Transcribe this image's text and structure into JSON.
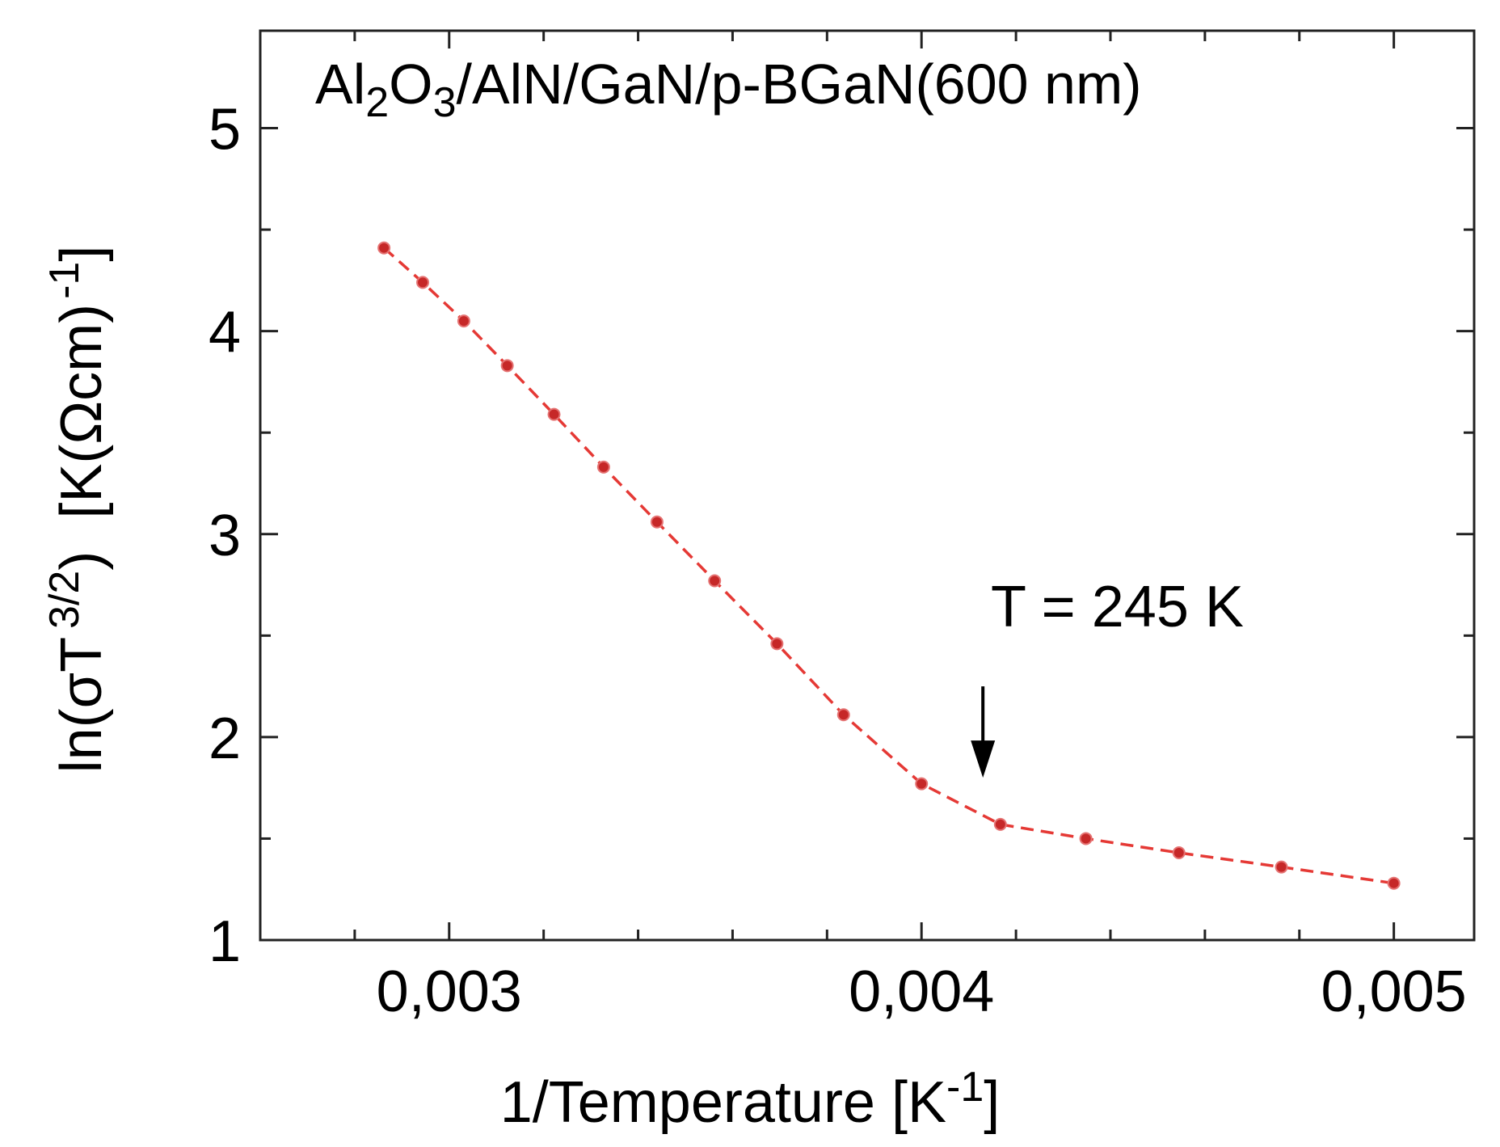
{
  "chart_data": {
    "type": "line",
    "title": "Al2O3/AlN/GaN/p-BGaN(600 nm)",
    "title_parts": [
      "Al",
      "2",
      "O",
      "3",
      "/AlN/GaN/p-BGaN(600 nm)"
    ],
    "xlabel": "1/Temperature [K-1]",
    "xlabel_parts": [
      "1/Temperature [K",
      "-1",
      "]"
    ],
    "ylabel": "ln(σT 3/2)  [K(Ωcm) -1]",
    "ylabel_parts": [
      "ln(σT",
      "3/2",
      ")  [K(Ωcm)",
      "-1",
      "]"
    ],
    "xlim": [
      0.0026,
      0.00517
    ],
    "ylim": [
      1.0,
      5.48
    ],
    "x_ticks": [
      0.003,
      0.004,
      0.005
    ],
    "x_tick_labels": [
      "0,003",
      "0,004",
      "0,005"
    ],
    "x_minor_ticks": [
      0.0028,
      0.0032,
      0.0034,
      0.0036,
      0.0038,
      0.0042,
      0.0044,
      0.0046,
      0.0048
    ],
    "y_ticks": [
      1,
      2,
      3,
      4,
      5
    ],
    "y_tick_labels": [
      "1",
      "2",
      "3",
      "4",
      "5"
    ],
    "y_minor_ticks": [
      1.5,
      2.5,
      3.5,
      4.5
    ],
    "grid": false,
    "series": [
      {
        "color": "#c62828",
        "line_style": "dashed",
        "x": [
          0.002862,
          0.002944,
          0.003031,
          0.003123,
          0.003222,
          0.003327,
          0.00344,
          0.003562,
          0.003694,
          0.003835,
          0.004,
          0.004167,
          0.004348,
          0.004545,
          0.004762,
          0.005
        ],
        "y": [
          4.41,
          4.24,
          4.05,
          3.83,
          3.59,
          3.33,
          3.06,
          2.77,
          2.46,
          2.11,
          1.77,
          1.57,
          1.5,
          1.43,
          1.36,
          1.28
        ]
      }
    ],
    "annotations": [
      {
        "text": "T = 245 K",
        "arrow_x": 0.00413,
        "arrow_y_from": 2.25,
        "arrow_y_to": 1.8
      }
    ]
  }
}
